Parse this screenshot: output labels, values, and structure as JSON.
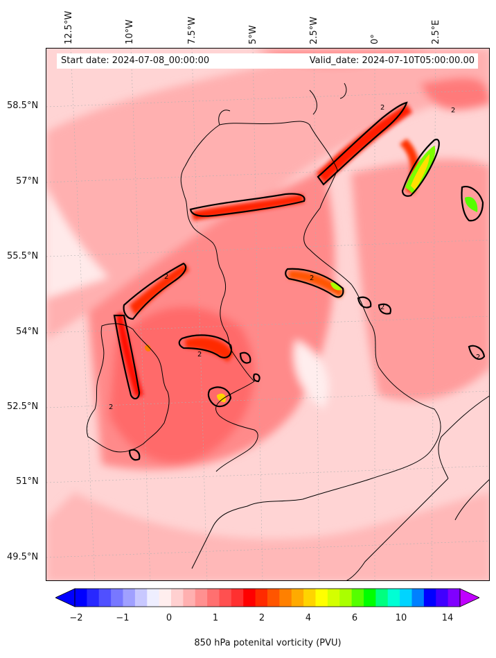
{
  "header": {
    "start_label": "Start date: 2024-07-08_00:00:00",
    "valid_label": "Valid_date: 2024-07-10T05:00:00.00"
  },
  "axes": {
    "longitudes": [
      "12.5°W",
      "10°W",
      "7.5°W",
      "5°W",
      "2.5°W",
      "0°",
      "2.5°E"
    ],
    "latitudes": [
      "58.5°N",
      "57°N",
      "55.5°N",
      "54°N",
      "52.5°N",
      "51°N",
      "49.5°N"
    ]
  },
  "colorbar": {
    "title": "850 hPa potenital vorticity (PVU)",
    "ticks": [
      "−2",
      "−1",
      "0",
      "1",
      "2",
      "4",
      "6",
      "10",
      "14"
    ],
    "colors": [
      "#0000ff",
      "#2828ff",
      "#5050ff",
      "#7878ff",
      "#a0a0ff",
      "#c8c8ff",
      "#eeeeff",
      "#ffeeee",
      "#ffd0d0",
      "#ffb0b0",
      "#ff9090",
      "#ff7070",
      "#ff5050",
      "#ff3030",
      "#ff0000",
      "#ff2a00",
      "#ff5500",
      "#ff8000",
      "#ffaa00",
      "#ffd400",
      "#ffff00",
      "#d4ff00",
      "#aaff00",
      "#55ff00",
      "#00ff00",
      "#00ff80",
      "#00ffd4",
      "#00d4ff",
      "#0080ff",
      "#0000ff",
      "#4000ff",
      "#8000ff"
    ],
    "extend_low": "#0000ff",
    "extend_high": "#c000ff"
  },
  "map": {
    "variable": "potential vorticity at 850 hPa",
    "contour_level": "2",
    "background_color": "#ffd8d8"
  }
}
